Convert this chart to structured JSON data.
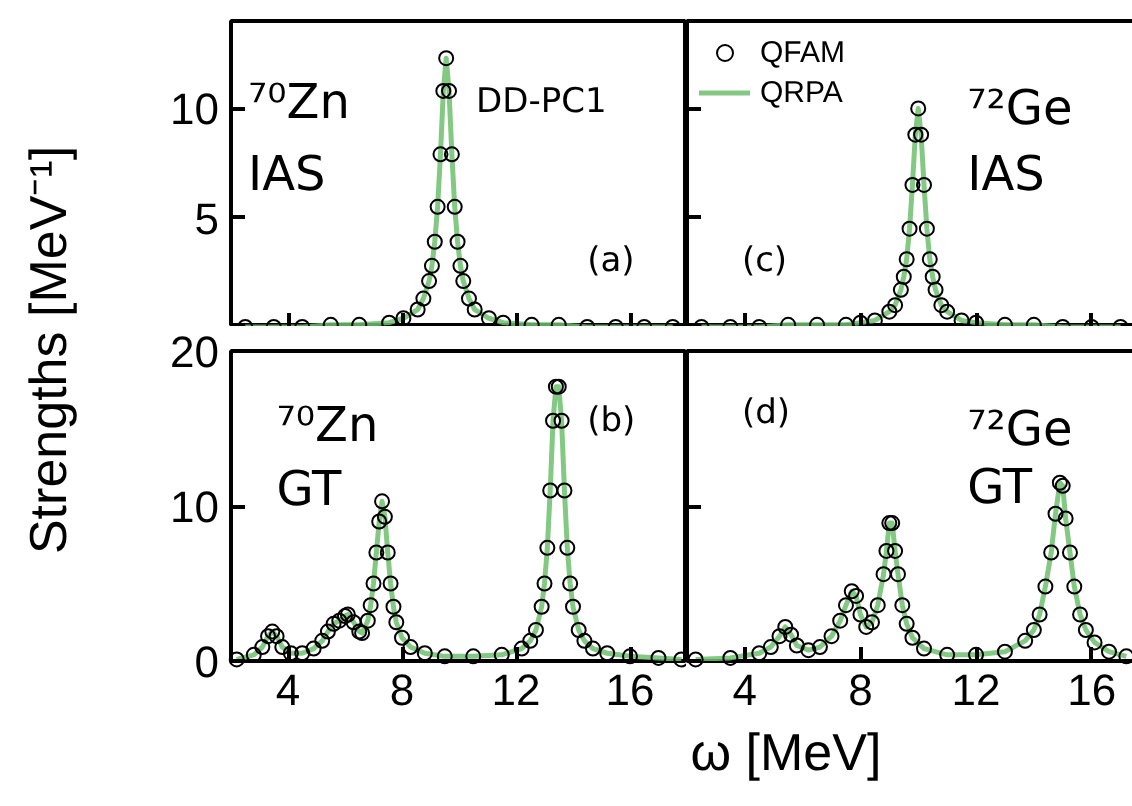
{
  "chart_data": [
    {
      "type": "line",
      "ylabel": "Strengths [MeV⁻¹]",
      "xlim": [
        2,
        18
      ],
      "ylim": [
        0,
        14
      ],
      "xticks": [
        4,
        8,
        12,
        16
      ],
      "yticks": [
        {
          "value": 0,
          "label": null
        },
        5,
        10
      ],
      "tick_labels": "y",
      "grid": false,
      "annotations": [
        "⁷⁰Zn",
        "IAS",
        "DD-PC1",
        "(a)"
      ],
      "series": [
        {
          "color": "#6dbf6d",
          "x": [
            2.5,
            3.5,
            4.5,
            5.5,
            6.5,
            7.55,
            8.05,
            8.55,
            8.75,
            8.95,
            9.05,
            9.15,
            9.25,
            9.35,
            9.45,
            9.55,
            9.65,
            9.75,
            9.85,
            9.95,
            10.05,
            10.15,
            10.35,
            10.55,
            11.05,
            11.55,
            12.55,
            13.5,
            14.5,
            15.5,
            16.5,
            17.5
          ],
          "values": [
            0.0,
            0.0,
            0.0,
            0.1,
            0.1,
            0.2,
            0.4,
            0.8,
            1.3,
            2.1,
            2.8,
            3.9,
            5.5,
            7.9,
            10.8,
            12.3,
            10.8,
            7.9,
            5.5,
            3.9,
            2.8,
            2.1,
            1.3,
            0.8,
            0.4,
            0.2,
            0.1,
            0.1,
            0.0,
            0.0,
            0.0,
            0.0
          ]
        },
        {
          "type": "scatter",
          "marker": "circle",
          "color": "#000000",
          "x": [
            2.5,
            3.5,
            4.5,
            5.5,
            6.5,
            7.55,
            8.05,
            8.55,
            8.75,
            8.95,
            9.05,
            9.15,
            9.25,
            9.35,
            9.45,
            9.55,
            9.65,
            9.75,
            9.85,
            9.95,
            10.05,
            10.15,
            10.35,
            10.55,
            11.05,
            11.55,
            12.55,
            13.5,
            14.5,
            15.5,
            16.5,
            17.5
          ],
          "values": [
            0.0,
            0.0,
            0.0,
            0.1,
            0.1,
            0.2,
            0.4,
            0.8,
            1.3,
            2.1,
            2.8,
            3.9,
            5.5,
            7.9,
            10.8,
            12.3,
            10.8,
            7.9,
            5.5,
            3.9,
            2.8,
            2.1,
            1.3,
            0.8,
            0.4,
            0.2,
            0.1,
            0.1,
            0.0,
            0.0,
            0.0,
            0.0
          ]
        }
      ]
    },
    {
      "type": "line",
      "xlim": [
        2,
        17.5
      ],
      "ylim": [
        0,
        14
      ],
      "xticks": [
        4,
        8,
        12,
        16
      ],
      "yticks": [
        {
          "value": 0,
          "label": null
        },
        {
          "value": 5,
          "label": null
        },
        {
          "value": 10,
          "label": null
        }
      ],
      "tick_labels": false,
      "grid": false,
      "legend": "top left",
      "annotations": [
        "(c)",
        "⁷²Ge",
        "IAS"
      ],
      "series": [
        {
          "name": "QFAM",
          "type": "scatter",
          "marker": "circle",
          "color": "#000000",
          "x": [
            2.5,
            3.5,
            4.5,
            5.5,
            6.5,
            7.5,
            8.0,
            8.5,
            9.0,
            9.2,
            9.4,
            9.5,
            9.6,
            9.7,
            9.8,
            9.9,
            10.0,
            10.1,
            10.2,
            10.3,
            10.4,
            10.5,
            10.6,
            10.8,
            11.0,
            11.5,
            12.0,
            13.0,
            14.0,
            15.0,
            16.0,
            17.0
          ],
          "values": [
            0.0,
            0.0,
            0.0,
            0.1,
            0.1,
            0.1,
            0.2,
            0.3,
            0.7,
            1.0,
            1.7,
            2.3,
            3.1,
            4.5,
            6.5,
            8.8,
            10.0,
            8.8,
            6.5,
            4.5,
            3.1,
            2.3,
            1.7,
            1.0,
            0.7,
            0.3,
            0.2,
            0.1,
            0.1,
            0.0,
            0.0,
            0.0
          ]
        },
        {
          "name": "QRPA",
          "color": "#6dbf6d",
          "x": [
            2.5,
            3.5,
            4.5,
            5.5,
            6.5,
            7.5,
            8.0,
            8.5,
            9.0,
            9.2,
            9.4,
            9.5,
            9.6,
            9.7,
            9.8,
            9.9,
            10.0,
            10.1,
            10.2,
            10.3,
            10.4,
            10.5,
            10.6,
            10.8,
            11.0,
            11.5,
            12.0,
            13.0,
            14.0,
            15.0,
            16.0,
            17.0
          ],
          "values": [
            0.0,
            0.0,
            0.0,
            0.1,
            0.1,
            0.1,
            0.2,
            0.3,
            0.7,
            1.0,
            1.7,
            2.3,
            3.1,
            4.5,
            6.5,
            8.8,
            10.0,
            8.8,
            6.5,
            4.5,
            3.1,
            2.3,
            1.7,
            1.0,
            0.7,
            0.3,
            0.2,
            0.1,
            0.1,
            0.0,
            0.0,
            0.0
          ]
        }
      ]
    },
    {
      "type": "line",
      "xlabel": "ω [MeV]",
      "xlim": [
        2,
        18
      ],
      "ylim": [
        0,
        20
      ],
      "xticks": [
        4,
        8,
        12,
        16
      ],
      "yticks": [
        0,
        10,
        20
      ],
      "grid": false,
      "annotations": [
        "⁷⁰Zn",
        "GT",
        "(b)"
      ],
      "series": [
        {
          "color": "#6dbf6d",
          "x": [
            2.2,
            2.8,
            3.1,
            3.3,
            3.45,
            3.6,
            3.8,
            4.1,
            4.5,
            4.9,
            5.2,
            5.4,
            5.6,
            5.8,
            6.0,
            6.1,
            6.3,
            6.5,
            6.6,
            6.8,
            6.9,
            7.0,
            7.1,
            7.2,
            7.3,
            7.4,
            7.5,
            7.6,
            7.7,
            7.8,
            8.0,
            8.3,
            8.8,
            9.5,
            10.5,
            11.5,
            12.2,
            12.5,
            12.7,
            12.9,
            13.0,
            13.1,
            13.2,
            13.3,
            13.4,
            13.5,
            13.6,
            13.7,
            13.8,
            13.9,
            14.0,
            14.2,
            14.4,
            14.7,
            15.2,
            16.0,
            17.0,
            17.8
          ],
          "values": [
            0.1,
            0.4,
            0.9,
            1.6,
            1.9,
            1.6,
            0.9,
            0.5,
            0.5,
            0.8,
            1.3,
            1.9,
            2.4,
            2.6,
            2.9,
            3.0,
            2.5,
            1.9,
            1.8,
            2.6,
            3.6,
            5.0,
            7.0,
            9.0,
            10.3,
            9.3,
            7.0,
            5.0,
            3.5,
            2.5,
            1.5,
            0.9,
            0.5,
            0.3,
            0.3,
            0.4,
            0.8,
            1.3,
            2.0,
            3.5,
            5.0,
            7.3,
            11.0,
            15.5,
            17.7,
            17.7,
            15.5,
            11.0,
            7.3,
            5.0,
            3.5,
            2.0,
            1.3,
            0.8,
            0.5,
            0.3,
            0.2,
            0.1
          ]
        },
        {
          "type": "scatter",
          "marker": "circle",
          "color": "#000000",
          "x": [
            2.2,
            2.8,
            3.1,
            3.3,
            3.45,
            3.6,
            3.8,
            4.1,
            4.5,
            4.9,
            5.2,
            5.4,
            5.6,
            5.8,
            6.0,
            6.1,
            6.3,
            6.5,
            6.6,
            6.8,
            6.9,
            7.0,
            7.1,
            7.2,
            7.3,
            7.4,
            7.5,
            7.6,
            7.7,
            7.8,
            8.0,
            8.3,
            8.8,
            9.5,
            10.5,
            11.5,
            12.2,
            12.5,
            12.7,
            12.9,
            13.0,
            13.1,
            13.2,
            13.3,
            13.4,
            13.5,
            13.6,
            13.7,
            13.8,
            13.9,
            14.0,
            14.2,
            14.4,
            14.7,
            15.2,
            16.0,
            17.0,
            17.8
          ],
          "values": [
            0.1,
            0.4,
            0.9,
            1.6,
            1.9,
            1.6,
            0.9,
            0.5,
            0.5,
            0.8,
            1.3,
            1.9,
            2.4,
            2.6,
            2.9,
            3.0,
            2.5,
            1.9,
            1.8,
            2.6,
            3.6,
            5.0,
            7.0,
            9.0,
            10.3,
            9.3,
            7.0,
            5.0,
            3.5,
            2.5,
            1.5,
            0.9,
            0.5,
            0.3,
            0.3,
            0.4,
            0.8,
            1.3,
            2.0,
            3.5,
            5.0,
            7.3,
            11.0,
            15.5,
            17.7,
            17.7,
            15.5,
            11.0,
            7.3,
            5.0,
            3.5,
            2.0,
            1.3,
            0.8,
            0.5,
            0.3,
            0.2,
            0.1
          ]
        }
      ]
    },
    {
      "type": "line",
      "xlim": [
        2,
        17.5
      ],
      "ylim": [
        0,
        20
      ],
      "xticks": [
        4,
        8,
        12,
        16
      ],
      "yticks": [
        {
          "value": 0,
          "label": null
        },
        {
          "value": 10,
          "label": null
        },
        {
          "value": 20,
          "label": null
        }
      ],
      "tick_labels": "x",
      "grid": false,
      "annotations": [
        "(d)",
        "⁷²Ge",
        "GT"
      ],
      "series": [
        {
          "color": "#6dbf6d",
          "x": [
            2.3,
            3.5,
            4.5,
            4.9,
            5.2,
            5.4,
            5.6,
            5.8,
            6.2,
            6.6,
            7.0,
            7.3,
            7.5,
            7.7,
            7.85,
            8.0,
            8.2,
            8.4,
            8.6,
            8.8,
            8.9,
            9.0,
            9.1,
            9.2,
            9.3,
            9.45,
            9.6,
            9.8,
            10.2,
            11.0,
            12.0,
            13.0,
            13.7,
            14.0,
            14.2,
            14.4,
            14.6,
            14.75,
            14.9,
            15.0,
            15.1,
            15.25,
            15.4,
            15.6,
            15.8,
            16.1,
            16.6,
            17.2
          ],
          "values": [
            0.1,
            0.2,
            0.5,
            0.9,
            1.6,
            2.2,
            1.7,
            1.0,
            0.7,
            0.9,
            1.6,
            2.6,
            3.6,
            4.5,
            4.2,
            3.0,
            2.2,
            2.5,
            3.6,
            5.6,
            7.1,
            8.9,
            8.9,
            7.1,
            5.6,
            3.6,
            2.4,
            1.5,
            0.8,
            0.4,
            0.4,
            0.6,
            1.3,
            2.0,
            3.0,
            4.8,
            7.0,
            9.5,
            11.5,
            11.3,
            9.2,
            7.0,
            4.8,
            3.0,
            2.0,
            1.2,
            0.6,
            0.3
          ]
        },
        {
          "type": "scatter",
          "marker": "circle",
          "color": "#000000",
          "x": [
            2.3,
            3.5,
            4.5,
            4.9,
            5.2,
            5.4,
            5.6,
            5.8,
            6.2,
            6.6,
            7.0,
            7.3,
            7.5,
            7.7,
            7.85,
            8.0,
            8.2,
            8.4,
            8.6,
            8.8,
            8.9,
            9.0,
            9.1,
            9.2,
            9.3,
            9.45,
            9.6,
            9.8,
            10.2,
            11.0,
            12.0,
            13.0,
            13.7,
            14.0,
            14.2,
            14.4,
            14.6,
            14.75,
            14.9,
            15.0,
            15.1,
            15.25,
            15.4,
            15.6,
            15.8,
            16.1,
            16.6,
            17.2
          ],
          "values": [
            0.1,
            0.2,
            0.5,
            0.9,
            1.6,
            2.2,
            1.7,
            1.0,
            0.7,
            0.9,
            1.6,
            2.6,
            3.6,
            4.5,
            4.2,
            3.0,
            2.2,
            2.5,
            3.6,
            5.6,
            7.1,
            8.9,
            8.9,
            7.1,
            5.6,
            3.6,
            2.4,
            1.5,
            0.8,
            0.4,
            0.4,
            0.6,
            1.3,
            2.0,
            3.0,
            4.8,
            7.0,
            9.5,
            11.5,
            11.3,
            9.2,
            7.0,
            4.8,
            3.0,
            2.0,
            1.2,
            0.6,
            0.3
          ]
        }
      ]
    }
  ]
}
